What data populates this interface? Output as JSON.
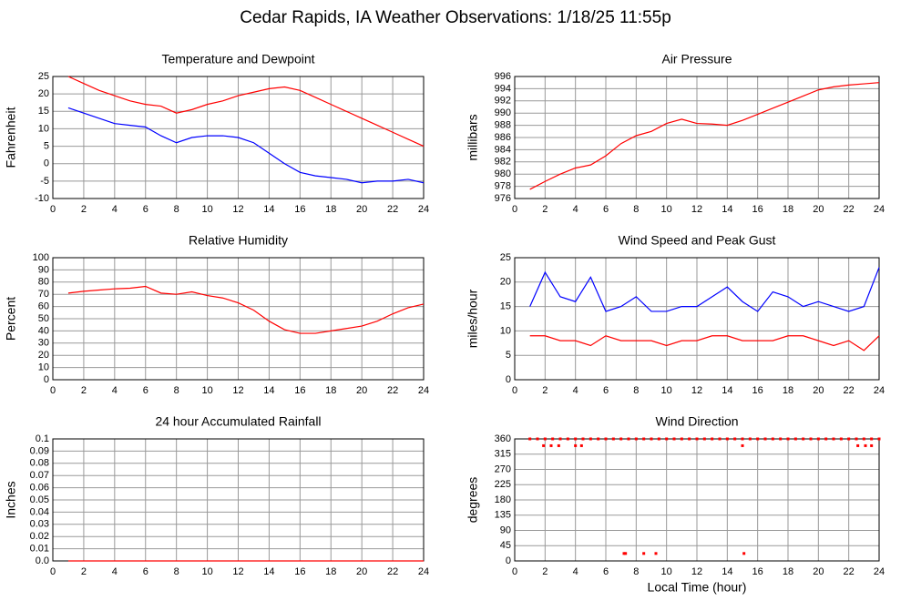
{
  "title": "Cedar Rapids, IA Weather Observations: 1/18/25 11:55p",
  "chart_data": [
    {
      "type": "line",
      "title": "Temperature and Dewpoint",
      "ylabel": "Fahrenheit",
      "grid": true,
      "xlim": [
        0,
        24
      ],
      "xticks": [
        0,
        2,
        4,
        6,
        8,
        10,
        12,
        14,
        16,
        18,
        20,
        22,
        24
      ],
      "ylim": [
        -10,
        25
      ],
      "yticks": [
        -10,
        -5,
        0,
        5,
        10,
        15,
        20,
        25
      ],
      "x": [
        1,
        2,
        3,
        4,
        5,
        6,
        7,
        8,
        9,
        10,
        11,
        12,
        13,
        14,
        15,
        16,
        17,
        18,
        19,
        20,
        21,
        22,
        23,
        24
      ],
      "series": [
        {
          "color": "#ff0000",
          "values": [
            25,
            23,
            21,
            19.5,
            18,
            17,
            16.5,
            14.5,
            15.5,
            17,
            18,
            19.5,
            20.5,
            21.5,
            22,
            21,
            19,
            17,
            15,
            13,
            11,
            9,
            7,
            5
          ]
        },
        {
          "color": "#0000ff",
          "values": [
            16,
            14.5,
            13,
            11.5,
            11,
            10.5,
            8,
            6,
            7.5,
            8,
            8,
            7.5,
            6,
            3,
            0,
            -2.5,
            -3.5,
            -4,
            -4.5,
            -5.5,
            -5,
            -5,
            -4.5,
            -5.5
          ]
        }
      ]
    },
    {
      "type": "line",
      "title": "Air Pressure",
      "ylabel": "millibars",
      "grid": true,
      "xlim": [
        0,
        24
      ],
      "xticks": [
        0,
        2,
        4,
        6,
        8,
        10,
        12,
        14,
        16,
        18,
        20,
        22,
        24
      ],
      "ylim": [
        976,
        996
      ],
      "yticks": [
        976,
        978,
        980,
        982,
        984,
        986,
        988,
        990,
        992,
        994,
        996
      ],
      "x": [
        1,
        2,
        3,
        4,
        5,
        6,
        7,
        8,
        9,
        10,
        11,
        12,
        13,
        14,
        15,
        16,
        17,
        18,
        19,
        20,
        21,
        22,
        23,
        24
      ],
      "series": [
        {
          "color": "#ff0000",
          "values": [
            977.5,
            978.8,
            980,
            981,
            981.5,
            983,
            985,
            986.3,
            987,
            988.3,
            989,
            988.3,
            988.2,
            988,
            988.8,
            989.8,
            990.8,
            991.8,
            992.8,
            993.8,
            994.3,
            994.6,
            994.8,
            995
          ]
        }
      ]
    },
    {
      "type": "line",
      "title": "Relative Humidity",
      "ylabel": "Percent",
      "grid": true,
      "xlim": [
        0,
        24
      ],
      "xticks": [
        0,
        2,
        4,
        6,
        8,
        10,
        12,
        14,
        16,
        18,
        20,
        22,
        24
      ],
      "ylim": [
        0,
        100
      ],
      "yticks": [
        0,
        10,
        20,
        30,
        40,
        50,
        60,
        70,
        80,
        90,
        100
      ],
      "x": [
        1,
        2,
        3,
        4,
        5,
        6,
        7,
        8,
        9,
        10,
        11,
        12,
        13,
        14,
        15,
        16,
        17,
        18,
        19,
        20,
        21,
        22,
        23,
        24
      ],
      "series": [
        {
          "color": "#ff0000",
          "values": [
            71,
            72.5,
            73.5,
            74.5,
            75,
            76.5,
            71,
            70,
            72,
            69,
            67,
            63,
            57,
            48,
            41,
            38,
            38,
            40,
            42,
            44,
            48,
            54,
            59,
            62
          ]
        }
      ]
    },
    {
      "type": "line",
      "title": "Wind Speed and Peak Gust",
      "ylabel": "miles/hour",
      "grid": true,
      "xlim": [
        0,
        24
      ],
      "xticks": [
        0,
        2,
        4,
        6,
        8,
        10,
        12,
        14,
        16,
        18,
        20,
        22,
        24
      ],
      "ylim": [
        0,
        25
      ],
      "yticks": [
        0,
        5,
        10,
        15,
        20,
        25
      ],
      "x": [
        1,
        2,
        3,
        4,
        5,
        6,
        7,
        8,
        9,
        10,
        11,
        12,
        13,
        14,
        15,
        16,
        17,
        18,
        19,
        20,
        21,
        22,
        23,
        24
      ],
      "series": [
        {
          "color": "#0000ff",
          "values": [
            15,
            22,
            17,
            16,
            21,
            14,
            15,
            17,
            14,
            14,
            15,
            15,
            17,
            19,
            16,
            14,
            18,
            17,
            15,
            16,
            15,
            14,
            15,
            23
          ]
        },
        {
          "color": "#ff0000",
          "values": [
            9,
            9,
            8,
            8,
            7,
            9,
            8,
            8,
            8,
            7,
            8,
            8,
            9,
            9,
            8,
            8,
            8,
            9,
            9,
            8,
            7,
            8,
            6,
            9
          ]
        }
      ]
    },
    {
      "type": "line",
      "title": "24 hour Accumulated Rainfall",
      "ylabel": "Inches",
      "grid": true,
      "xlim": [
        0,
        24
      ],
      "xticks": [
        0,
        2,
        4,
        6,
        8,
        10,
        12,
        14,
        16,
        18,
        20,
        22,
        24
      ],
      "ylim": [
        0,
        0.1
      ],
      "yticks": [
        {
          "value": 0,
          "label": "0.0"
        },
        0.01,
        0.02,
        0.03,
        0.04,
        0.05,
        0.06,
        0.07,
        0.08,
        0.09,
        0.1
      ],
      "x": [
        1,
        24
      ],
      "series": [
        {
          "color": "#ff0000",
          "values": [
            0,
            0
          ]
        }
      ]
    },
    {
      "type": "scatter",
      "title": "Wind Direction",
      "ylabel": "degrees",
      "xlabel": "Local Time (hour)",
      "grid": true,
      "xlim": [
        0,
        24
      ],
      "xticks": [
        0,
        2,
        4,
        6,
        8,
        10,
        12,
        14,
        16,
        18,
        20,
        22,
        24
      ],
      "ylim": [
        0,
        360
      ],
      "yticks": [
        0,
        45,
        90,
        135,
        180,
        225,
        270,
        315,
        360
      ],
      "x": [
        1,
        1.5,
        2,
        2.5,
        3,
        3.5,
        4,
        4.5,
        5,
        5.5,
        6,
        6.5,
        7,
        7.5,
        8,
        8.5,
        9,
        9.5,
        10,
        10.5,
        11,
        11.5,
        12,
        12.5,
        13,
        13.5,
        14,
        14.5,
        15,
        15.5,
        16,
        16.5,
        17,
        17.5,
        18,
        18.5,
        19,
        19.5,
        20,
        20.5,
        21,
        21.5,
        22,
        22.5,
        23,
        23.5,
        24,
        1.9,
        2.4,
        2.9,
        4,
        4.4,
        7.2,
        7.3,
        8.5,
        9.3,
        15,
        15.1,
        22.6,
        23.1,
        23.5
      ],
      "series": [
        {
          "color": "#ff0000",
          "values": [
            360,
            360,
            360,
            360,
            360,
            360,
            360,
            360,
            360,
            360,
            360,
            360,
            360,
            360,
            360,
            360,
            360,
            360,
            360,
            360,
            360,
            360,
            360,
            360,
            360,
            360,
            360,
            360,
            360,
            360,
            360,
            360,
            360,
            360,
            360,
            360,
            360,
            360,
            360,
            360,
            360,
            360,
            360,
            360,
            360,
            360,
            360,
            340,
            340,
            340,
            340,
            340,
            22,
            22,
            22,
            22,
            340,
            22,
            340,
            340,
            340
          ]
        }
      ]
    }
  ]
}
